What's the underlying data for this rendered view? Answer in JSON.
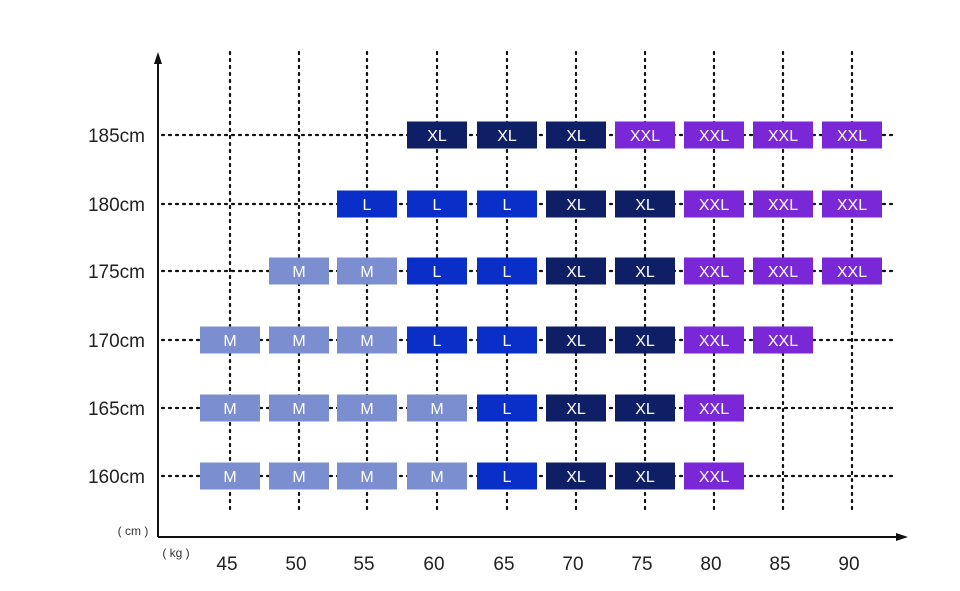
{
  "chart_data": {
    "type": "table",
    "title": "",
    "x_unit": "( kg )",
    "y_unit": "( cm )",
    "x": [
      45,
      50,
      55,
      60,
      65,
      70,
      75,
      80,
      85,
      90
    ],
    "y_labels": [
      "185cm",
      "180cm",
      "175cm",
      "170cm",
      "165cm",
      "160cm"
    ],
    "sizes": [
      [
        "",
        "",
        "",
        "XL",
        "XL",
        "XL",
        "XXL",
        "XXL",
        "XXL",
        "XXL"
      ],
      [
        "",
        "",
        "L",
        "L",
        "L",
        "XL",
        "XL",
        "XXL",
        "XXL",
        "XXL"
      ],
      [
        "",
        "M",
        "M",
        "L",
        "L",
        "XL",
        "XL",
        "XXL",
        "XXL",
        "XXL"
      ],
      [
        "M",
        "M",
        "M",
        "L",
        "L",
        "XL",
        "XL",
        "XXL",
        "XXL",
        ""
      ],
      [
        "M",
        "M",
        "M",
        "M",
        "L",
        "XL",
        "XL",
        "XXL",
        "",
        ""
      ],
      [
        "M",
        "M",
        "M",
        "M",
        "L",
        "XL",
        "XL",
        "XXL",
        "",
        ""
      ]
    ],
    "grid": true,
    "legend": "none"
  },
  "colors": {
    "M": "#7b8fd0",
    "L": "#0a2ec8",
    "XL": "#0f1f66",
    "XXL": "#7a27d8",
    "axis": "#111111",
    "grid": "#111111"
  }
}
